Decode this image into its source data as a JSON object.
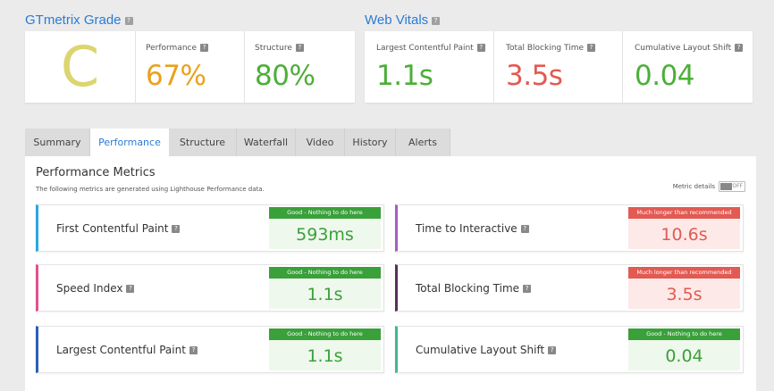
{
  "grade_section": {
    "title": "GTmetrix Grade",
    "grade": "C",
    "grade_color": "#dcd570",
    "metrics": [
      {
        "label": "Performance",
        "value": "67%",
        "color": "#e8a21c"
      },
      {
        "label": "Structure",
        "value": "80%",
        "color": "#4caf38"
      }
    ]
  },
  "vitals_section": {
    "title": "Web Vitals",
    "metrics": [
      {
        "label": "Largest Contentful Paint",
        "value": "1.1s",
        "color": "#4caf38"
      },
      {
        "label": "Total Blocking Time",
        "value": "3.5s",
        "color": "#e25a52"
      },
      {
        "label": "Cumulative Layout Shift",
        "value": "0.04",
        "color": "#4caf38"
      }
    ]
  },
  "tabs": [
    {
      "label": "Summary",
      "active": false
    },
    {
      "label": "Performance",
      "active": true
    },
    {
      "label": "Structure",
      "active": false
    },
    {
      "label": "Waterfall",
      "active": false
    },
    {
      "label": "Video",
      "active": false
    },
    {
      "label": "History",
      "active": false
    },
    {
      "label": "Alerts",
      "active": false
    }
  ],
  "panel": {
    "title": "Performance Metrics",
    "subtitle": "The following metrics are generated using Lighthouse Performance data.",
    "metric_details_label": "Metric details",
    "toggle_state": "OFF"
  },
  "metrics": [
    {
      "name": "First Contentful Paint",
      "value": "593ms",
      "status": "good",
      "badge": "Good - Nothing to do here",
      "accent": "#2ba8e0"
    },
    {
      "name": "Time to Interactive",
      "value": "10.6s",
      "status": "bad",
      "badge": "Much longer than recommended",
      "accent": "#a35fc4"
    },
    {
      "name": "Speed Index",
      "value": "1.1s",
      "status": "good",
      "badge": "Good - Nothing to do here",
      "accent": "#e0508c"
    },
    {
      "name": "Total Blocking Time",
      "value": "3.5s",
      "status": "bad",
      "badge": "Much longer than recommended",
      "accent": "#5b2e5e"
    },
    {
      "name": "Largest Contentful Paint",
      "value": "1.1s",
      "status": "good",
      "badge": "Good - Nothing to do here",
      "accent": "#2b5fb8"
    },
    {
      "name": "Cumulative Layout Shift",
      "value": "0.04",
      "status": "good",
      "badge": "Good - Nothing to do here",
      "accent": "#3fb98c"
    }
  ]
}
